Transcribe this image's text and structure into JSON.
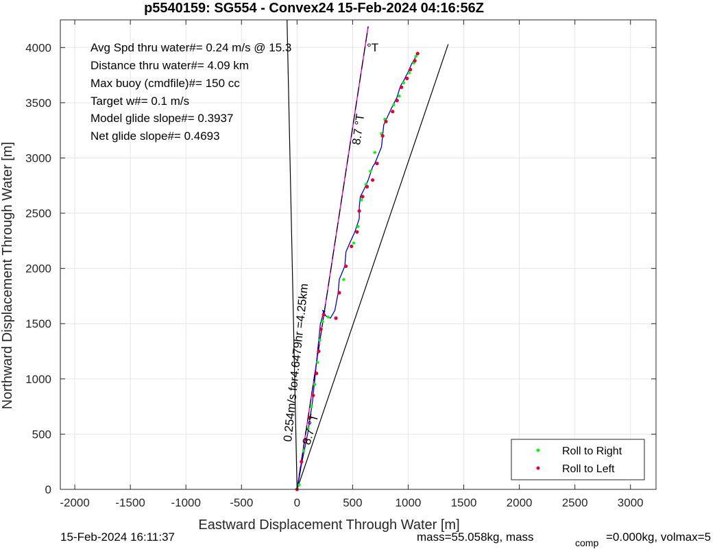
{
  "chart_data": {
    "type": "line",
    "title": "p5540159: SG554 - Convex24 15-Feb-2024 04:16:56Z",
    "xlabel": "Eastward Displacement Through Water [m]",
    "ylabel": "Northward Displacement Through Water [m]",
    "xlim": [
      -2130,
      3230
    ],
    "ylim": [
      0,
      4250
    ],
    "xticks": [
      -2000,
      -1500,
      -1000,
      -500,
      0,
      500,
      1000,
      1500,
      2000,
      2500,
      3000
    ],
    "yticks": [
      0,
      500,
      1000,
      1500,
      2000,
      2500,
      3000,
      3500,
      4000
    ],
    "grid": true,
    "legend_position": "bottom-right",
    "annotations_box": [
      "Avg Spd thru water#=  0.24 m/s @  15.3",
      "Distance thru water#=  4.09 km",
      "Max buoy (cmdfile)#= 150 cc",
      "Target w#= 0.1 m/s",
      "Model glide slope#= 0.3937",
      "Net glide slope#= 0.4693"
    ],
    "degree_label": "°T",
    "heading_label": "8.7 °T",
    "heading_label_small": "8.7 °T",
    "speed_label": "0.254m/s for4.6479hr =4.25km",
    "guide_lines": [
      {
        "name": "left bound",
        "x": [
          0,
          -90
        ],
        "y": [
          0,
          4250
        ],
        "color": "#000000"
      },
      {
        "name": "right bound",
        "x": [
          0,
          1360
        ],
        "y": [
          0,
          4030
        ],
        "color": "#000000"
      },
      {
        "name": "heading",
        "x": [
          0,
          640
        ],
        "y": [
          0,
          4190
        ],
        "color": "#ff00ff"
      }
    ],
    "track": {
      "color": "#0000cc",
      "x": [
        0,
        15,
        35,
        55,
        75,
        95,
        110,
        125,
        140,
        150,
        160,
        170,
        180,
        190,
        200,
        210,
        225,
        235,
        250,
        230,
        260,
        300,
        340,
        370,
        380,
        430,
        440,
        470,
        520,
        560,
        560,
        570,
        610,
        640,
        680,
        700,
        720,
        760,
        770,
        780,
        850,
        900,
        930,
        960,
        1000,
        1030,
        1060,
        1080
      ],
      "y": [
        0,
        80,
        200,
        300,
        400,
        500,
        600,
        700,
        800,
        900,
        1000,
        1100,
        1200,
        1300,
        1400,
        1500,
        1550,
        1600,
        1610,
        1620,
        1570,
        1550,
        1620,
        1780,
        1900,
        2020,
        2150,
        2220,
        2330,
        2450,
        2560,
        2650,
        2730,
        2800,
        2920,
        2950,
        3000,
        3100,
        3200,
        3300,
        3450,
        3550,
        3650,
        3700,
        3780,
        3850,
        3900,
        3945
      ]
    },
    "series": [
      {
        "name": "Roll to Right",
        "color": "#00ff00",
        "x": [
          20,
          60,
          100,
          130,
          160,
          185,
          205,
          230,
          280,
          420,
          510,
          550,
          580,
          620,
          660,
          700,
          760,
          790,
          870,
          920,
          960,
          1010,
          1050,
          1070
        ],
        "y": [
          40,
          350,
          550,
          750,
          950,
          1150,
          1350,
          1520,
          1560,
          1900,
          2230,
          2380,
          2620,
          2760,
          2880,
          3050,
          3220,
          3350,
          3480,
          3560,
          3680,
          3770,
          3860,
          3920
        ]
      },
      {
        "name": "Roll to Left",
        "color": "#e0003a",
        "x": [
          0,
          40,
          80,
          115,
          145,
          175,
          195,
          215,
          240,
          350,
          380,
          440,
          490,
          540,
          560,
          590,
          630,
          680,
          720,
          770,
          800,
          860,
          900,
          940,
          990,
          1020,
          1060,
          1085
        ],
        "y": [
          0,
          250,
          450,
          650,
          850,
          1050,
          1250,
          1450,
          1580,
          1550,
          1780,
          2020,
          2200,
          2330,
          2520,
          2650,
          2740,
          2800,
          2950,
          3200,
          3330,
          3420,
          3520,
          3640,
          3720,
          3800,
          3880,
          3945
        ]
      }
    ]
  },
  "footer": {
    "timestamp": "15-Feb-2024 16:11:37",
    "mass_text": "mass=55.058kg, mass",
    "comp_sub": "comp",
    "comp_text": "=0.000kg, volmax=5"
  }
}
